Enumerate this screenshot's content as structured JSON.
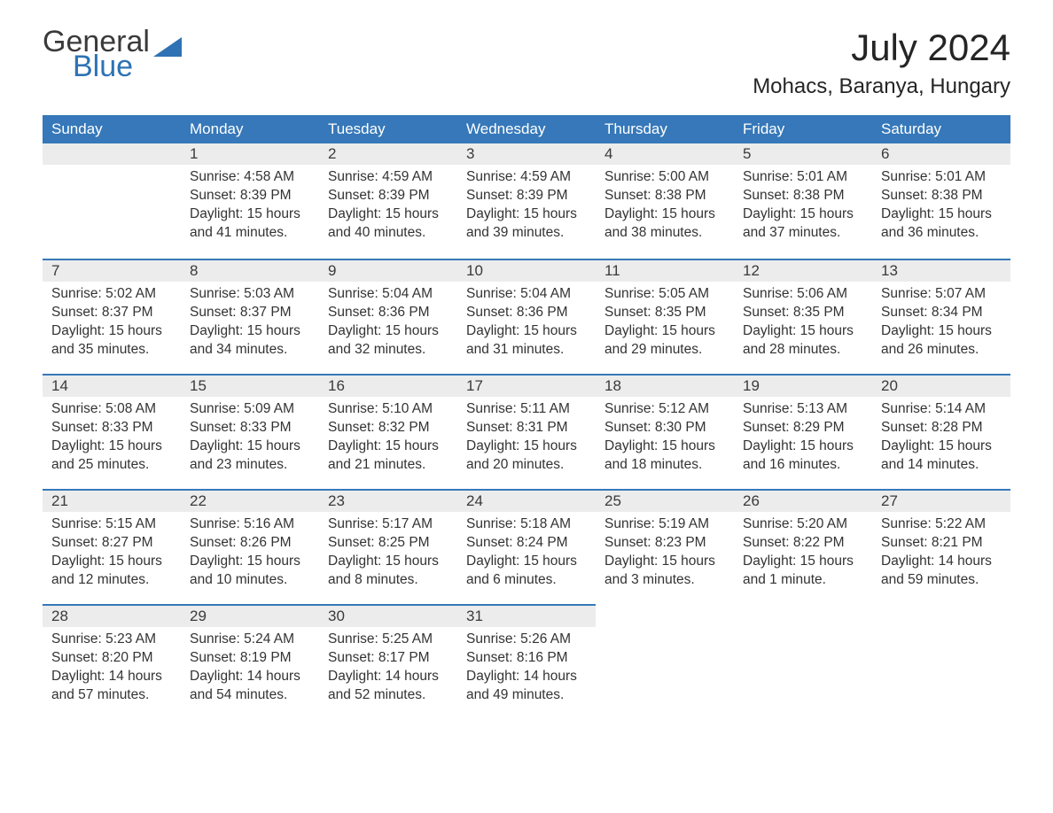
{
  "branding": {
    "logo_word1": "General",
    "logo_word2": "Blue",
    "logo_color_text": "#3a3a3a",
    "logo_color_blue": "#2e72b5",
    "sail_color": "#2e72b5"
  },
  "header": {
    "month_title": "July 2024",
    "location": "Mohacs, Baranya, Hungary"
  },
  "colors": {
    "header_row_bg": "#3678b9",
    "header_row_text": "#ffffff",
    "daynum_bg": "#ececec",
    "daynum_border": "#3678b9",
    "body_text": "#333333",
    "page_bg": "#ffffff"
  },
  "weekdays": [
    "Sunday",
    "Monday",
    "Tuesday",
    "Wednesday",
    "Thursday",
    "Friday",
    "Saturday"
  ],
  "weeks": [
    [
      {
        "day": "",
        "sunrise": "",
        "sunset": "",
        "daylight": ""
      },
      {
        "day": "1",
        "sunrise": "Sunrise: 4:58 AM",
        "sunset": "Sunset: 8:39 PM",
        "daylight": "Daylight: 15 hours and 41 minutes."
      },
      {
        "day": "2",
        "sunrise": "Sunrise: 4:59 AM",
        "sunset": "Sunset: 8:39 PM",
        "daylight": "Daylight: 15 hours and 40 minutes."
      },
      {
        "day": "3",
        "sunrise": "Sunrise: 4:59 AM",
        "sunset": "Sunset: 8:39 PM",
        "daylight": "Daylight: 15 hours and 39 minutes."
      },
      {
        "day": "4",
        "sunrise": "Sunrise: 5:00 AM",
        "sunset": "Sunset: 8:38 PM",
        "daylight": "Daylight: 15 hours and 38 minutes."
      },
      {
        "day": "5",
        "sunrise": "Sunrise: 5:01 AM",
        "sunset": "Sunset: 8:38 PM",
        "daylight": "Daylight: 15 hours and 37 minutes."
      },
      {
        "day": "6",
        "sunrise": "Sunrise: 5:01 AM",
        "sunset": "Sunset: 8:38 PM",
        "daylight": "Daylight: 15 hours and 36 minutes."
      }
    ],
    [
      {
        "day": "7",
        "sunrise": "Sunrise: 5:02 AM",
        "sunset": "Sunset: 8:37 PM",
        "daylight": "Daylight: 15 hours and 35 minutes."
      },
      {
        "day": "8",
        "sunrise": "Sunrise: 5:03 AM",
        "sunset": "Sunset: 8:37 PM",
        "daylight": "Daylight: 15 hours and 34 minutes."
      },
      {
        "day": "9",
        "sunrise": "Sunrise: 5:04 AM",
        "sunset": "Sunset: 8:36 PM",
        "daylight": "Daylight: 15 hours and 32 minutes."
      },
      {
        "day": "10",
        "sunrise": "Sunrise: 5:04 AM",
        "sunset": "Sunset: 8:36 PM",
        "daylight": "Daylight: 15 hours and 31 minutes."
      },
      {
        "day": "11",
        "sunrise": "Sunrise: 5:05 AM",
        "sunset": "Sunset: 8:35 PM",
        "daylight": "Daylight: 15 hours and 29 minutes."
      },
      {
        "day": "12",
        "sunrise": "Sunrise: 5:06 AM",
        "sunset": "Sunset: 8:35 PM",
        "daylight": "Daylight: 15 hours and 28 minutes."
      },
      {
        "day": "13",
        "sunrise": "Sunrise: 5:07 AM",
        "sunset": "Sunset: 8:34 PM",
        "daylight": "Daylight: 15 hours and 26 minutes."
      }
    ],
    [
      {
        "day": "14",
        "sunrise": "Sunrise: 5:08 AM",
        "sunset": "Sunset: 8:33 PM",
        "daylight": "Daylight: 15 hours and 25 minutes."
      },
      {
        "day": "15",
        "sunrise": "Sunrise: 5:09 AM",
        "sunset": "Sunset: 8:33 PM",
        "daylight": "Daylight: 15 hours and 23 minutes."
      },
      {
        "day": "16",
        "sunrise": "Sunrise: 5:10 AM",
        "sunset": "Sunset: 8:32 PM",
        "daylight": "Daylight: 15 hours and 21 minutes."
      },
      {
        "day": "17",
        "sunrise": "Sunrise: 5:11 AM",
        "sunset": "Sunset: 8:31 PM",
        "daylight": "Daylight: 15 hours and 20 minutes."
      },
      {
        "day": "18",
        "sunrise": "Sunrise: 5:12 AM",
        "sunset": "Sunset: 8:30 PM",
        "daylight": "Daylight: 15 hours and 18 minutes."
      },
      {
        "day": "19",
        "sunrise": "Sunrise: 5:13 AM",
        "sunset": "Sunset: 8:29 PM",
        "daylight": "Daylight: 15 hours and 16 minutes."
      },
      {
        "day": "20",
        "sunrise": "Sunrise: 5:14 AM",
        "sunset": "Sunset: 8:28 PM",
        "daylight": "Daylight: 15 hours and 14 minutes."
      }
    ],
    [
      {
        "day": "21",
        "sunrise": "Sunrise: 5:15 AM",
        "sunset": "Sunset: 8:27 PM",
        "daylight": "Daylight: 15 hours and 12 minutes."
      },
      {
        "day": "22",
        "sunrise": "Sunrise: 5:16 AM",
        "sunset": "Sunset: 8:26 PM",
        "daylight": "Daylight: 15 hours and 10 minutes."
      },
      {
        "day": "23",
        "sunrise": "Sunrise: 5:17 AM",
        "sunset": "Sunset: 8:25 PM",
        "daylight": "Daylight: 15 hours and 8 minutes."
      },
      {
        "day": "24",
        "sunrise": "Sunrise: 5:18 AM",
        "sunset": "Sunset: 8:24 PM",
        "daylight": "Daylight: 15 hours and 6 minutes."
      },
      {
        "day": "25",
        "sunrise": "Sunrise: 5:19 AM",
        "sunset": "Sunset: 8:23 PM",
        "daylight": "Daylight: 15 hours and 3 minutes."
      },
      {
        "day": "26",
        "sunrise": "Sunrise: 5:20 AM",
        "sunset": "Sunset: 8:22 PM",
        "daylight": "Daylight: 15 hours and 1 minute."
      },
      {
        "day": "27",
        "sunrise": "Sunrise: 5:22 AM",
        "sunset": "Sunset: 8:21 PM",
        "daylight": "Daylight: 14 hours and 59 minutes."
      }
    ],
    [
      {
        "day": "28",
        "sunrise": "Sunrise: 5:23 AM",
        "sunset": "Sunset: 8:20 PM",
        "daylight": "Daylight: 14 hours and 57 minutes."
      },
      {
        "day": "29",
        "sunrise": "Sunrise: 5:24 AM",
        "sunset": "Sunset: 8:19 PM",
        "daylight": "Daylight: 14 hours and 54 minutes."
      },
      {
        "day": "30",
        "sunrise": "Sunrise: 5:25 AM",
        "sunset": "Sunset: 8:17 PM",
        "daylight": "Daylight: 14 hours and 52 minutes."
      },
      {
        "day": "31",
        "sunrise": "Sunrise: 5:26 AM",
        "sunset": "Sunset: 8:16 PM",
        "daylight": "Daylight: 14 hours and 49 minutes."
      },
      {
        "day": "",
        "sunrise": "",
        "sunset": "",
        "daylight": ""
      },
      {
        "day": "",
        "sunrise": "",
        "sunset": "",
        "daylight": ""
      },
      {
        "day": "",
        "sunrise": "",
        "sunset": "",
        "daylight": ""
      }
    ]
  ]
}
